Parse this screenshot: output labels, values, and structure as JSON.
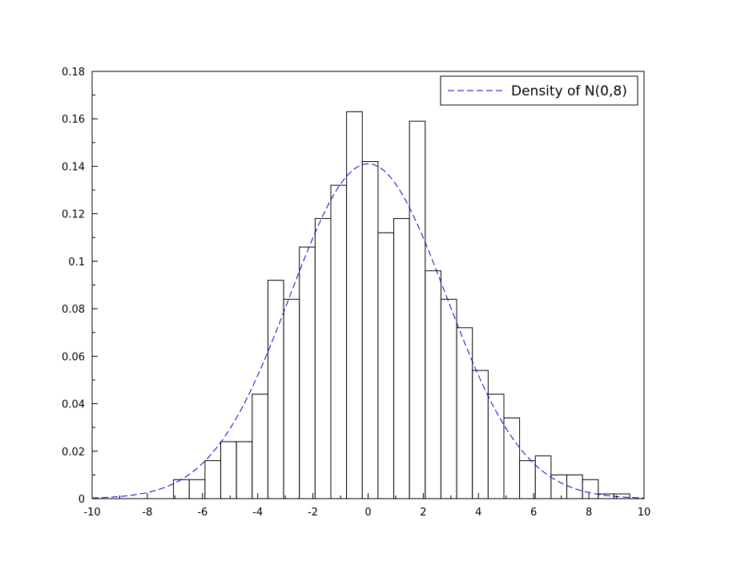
{
  "chart_data": {
    "type": "bar",
    "title": "",
    "xlabel": "",
    "ylabel": "",
    "xlim": [
      -10,
      10
    ],
    "ylim": [
      0,
      0.18
    ],
    "grid": false,
    "legend_position": "top-right",
    "x_ticks": [
      "-10",
      "-8",
      "-6",
      "-4",
      "-2",
      "0",
      "2",
      "4",
      "6",
      "8",
      "10"
    ],
    "y_ticks": [
      "0",
      "0.02",
      "0.04",
      "0.06",
      "0.08",
      "0.1",
      "0.12",
      "0.14",
      "0.16",
      "0.18"
    ],
    "histogram": {
      "bin_edges": [
        -7.05,
        -6.48,
        -5.91,
        -5.34,
        -4.77,
        -4.2,
        -3.63,
        -3.06,
        -2.49,
        -1.92,
        -1.35,
        -0.78,
        -0.21,
        0.36,
        0.93,
        1.5,
        2.07,
        2.64,
        3.21,
        3.78,
        4.35,
        4.92,
        5.49,
        6.06,
        6.63,
        7.2,
        7.77,
        8.34,
        8.91,
        9.48
      ],
      "values": [
        0.008,
        0.008,
        0.016,
        0.024,
        0.024,
        0.044,
        0.092,
        0.084,
        0.106,
        0.118,
        0.132,
        0.163,
        0.142,
        0.112,
        0.118,
        0.159,
        0.096,
        0.084,
        0.072,
        0.054,
        0.044,
        0.034,
        0.016,
        0.018,
        0.01,
        0.01,
        0.008,
        0.002,
        0.002
      ],
      "edge_color": "#000000",
      "fill_color": "#ffffff"
    },
    "series": [
      {
        "name": "Density of N(0,8)",
        "kind": "normal_density",
        "mean": 0,
        "variance": 8,
        "x_range": [
          -10,
          10
        ],
        "color": "#0000cc",
        "style": "dashed"
      }
    ]
  }
}
